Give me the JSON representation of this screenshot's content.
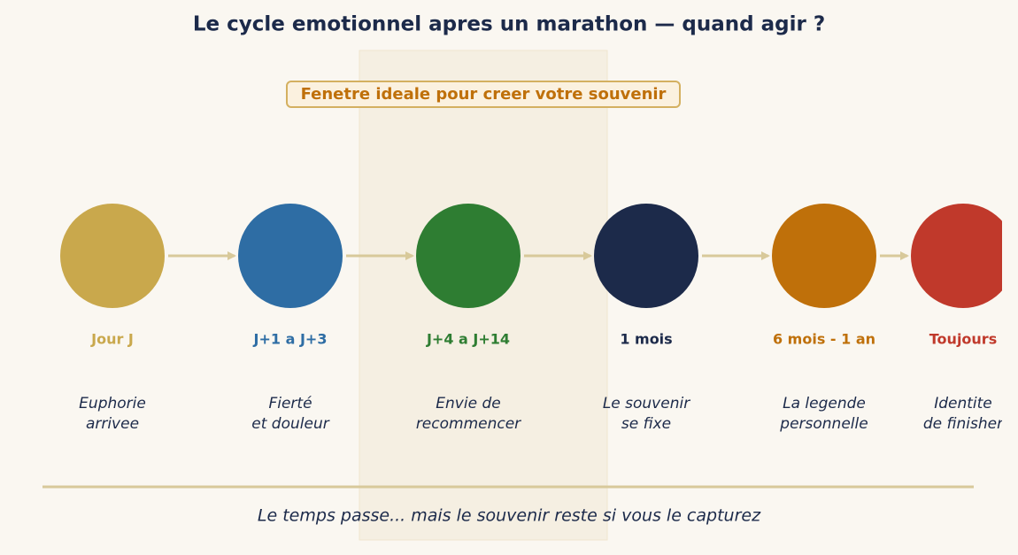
{
  "title": "Le cycle emotionnel apres un marathon — quand agir ?",
  "highlight_label": "Fenetre ideale pour creer votre souvenir",
  "stages": [
    {
      "label": "Jour J",
      "color": "#c9a84c",
      "description": [
        "Euphorie",
        "arrivee"
      ]
    },
    {
      "label": "J+1 a J+3",
      "color": "#2e6da4",
      "description": [
        "Fierté",
        "et douleur"
      ]
    },
    {
      "label": "J+4 a J+14",
      "color": "#2e7d32",
      "description": [
        "Envie de",
        "recommencer"
      ]
    },
    {
      "label": "1 mois",
      "color": "#1c2a4a",
      "description": [
        "Le souvenir",
        "se fixe"
      ]
    },
    {
      "label": "6 mois - 1 an",
      "color": "#bf700a",
      "description": [
        "La legende",
        "personnelle"
      ]
    },
    {
      "label": "Toujours",
      "color": "#c0392b",
      "description": [
        "Identite",
        "de finisher"
      ]
    }
  ],
  "footer": "Le temps passe... mais le souvenir reste si vous le capturez"
}
